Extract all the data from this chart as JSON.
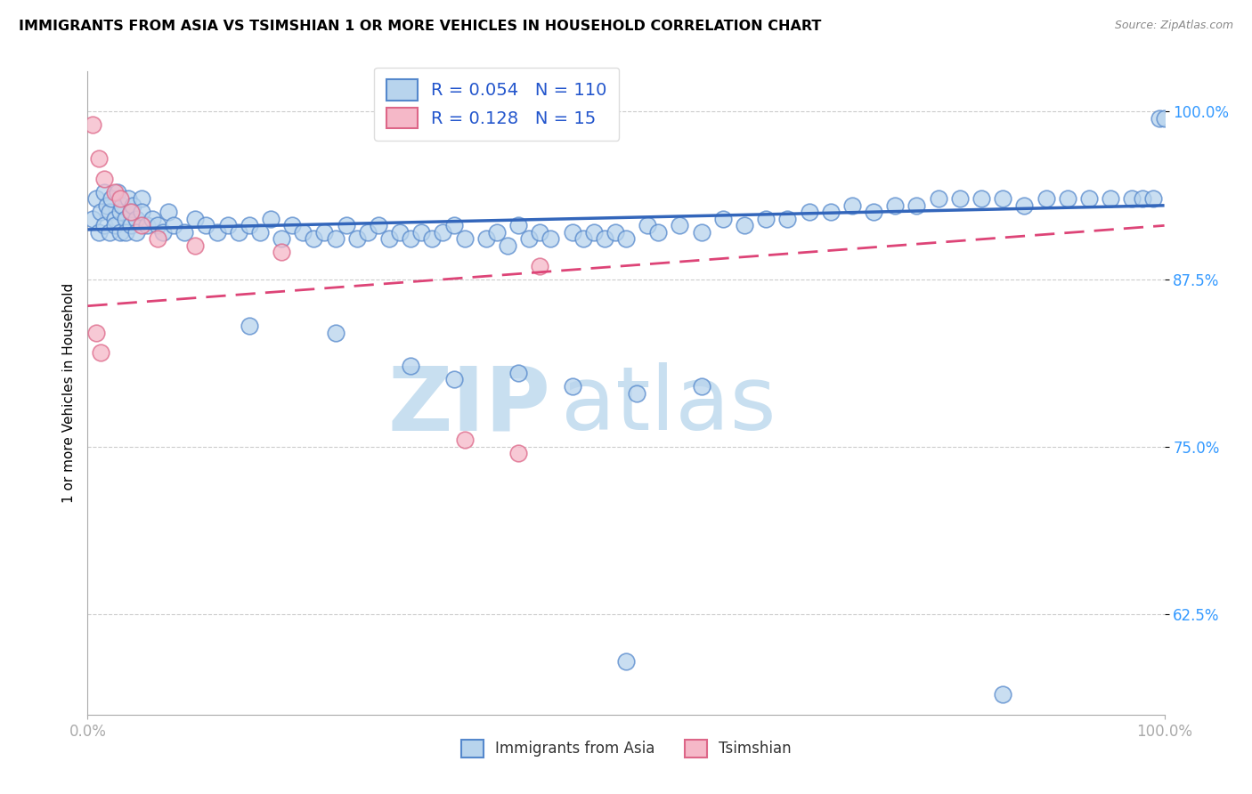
{
  "title": "IMMIGRANTS FROM ASIA VS TSIMSHIAN 1 OR MORE VEHICLES IN HOUSEHOLD CORRELATION CHART",
  "source": "Source: ZipAtlas.com",
  "ylabel": "1 or more Vehicles in Household",
  "xlim": [
    0.0,
    100.0
  ],
  "ylim": [
    55.0,
    103.0
  ],
  "yticks": [
    62.5,
    75.0,
    87.5,
    100.0
  ],
  "yticklabels": [
    "62.5%",
    "75.0%",
    "87.5%",
    "100.0%"
  ],
  "blue_R": 0.054,
  "blue_N": 110,
  "pink_R": 0.128,
  "pink_N": 15,
  "blue_color": "#b8d4ed",
  "pink_color": "#f5b8c8",
  "blue_edge": "#5588cc",
  "pink_edge": "#dd6688",
  "trend_blue": "#3366bb",
  "trend_pink": "#dd4477",
  "watermark_ZIP": "ZIP",
  "watermark_atlas": "atlas",
  "watermark_color": "#c8dff0",
  "background_color": "#ffffff",
  "grid_color": "#cccccc",
  "blue_x": [
    0.5,
    0.8,
    1.0,
    1.2,
    1.5,
    1.5,
    1.8,
    2.0,
    2.0,
    2.2,
    2.5,
    2.5,
    2.8,
    3.0,
    3.0,
    3.2,
    3.5,
    3.5,
    3.8,
    4.0,
    4.0,
    4.2,
    4.5,
    4.5,
    5.0,
    5.0,
    5.5,
    6.0,
    6.5,
    7.0,
    7.5,
    8.0,
    9.0,
    10.0,
    11.0,
    12.0,
    13.0,
    14.0,
    15.0,
    16.0,
    17.0,
    18.0,
    19.0,
    20.0,
    21.0,
    22.0,
    23.0,
    24.0,
    25.0,
    26.0,
    27.0,
    28.0,
    29.0,
    30.0,
    31.0,
    32.0,
    33.0,
    34.0,
    35.0,
    37.0,
    38.0,
    39.0,
    40.0,
    41.0,
    42.0,
    43.0,
    45.0,
    46.0,
    47.0,
    48.0,
    49.0,
    50.0,
    52.0,
    53.0,
    55.0,
    57.0,
    59.0,
    61.0,
    63.0,
    65.0,
    67.0,
    69.0,
    71.0,
    73.0,
    75.0,
    77.0,
    79.0,
    81.0,
    83.0,
    85.0,
    87.0,
    89.0,
    91.0,
    93.0,
    95.0,
    97.0,
    98.0,
    99.0,
    99.5,
    100.0,
    50.0,
    85.0,
    15.0,
    23.0,
    30.0,
    34.0,
    40.0,
    45.0,
    51.0,
    57.0
  ],
  "blue_y": [
    92.0,
    93.5,
    91.0,
    92.5,
    94.0,
    91.5,
    93.0,
    92.5,
    91.0,
    93.5,
    92.0,
    91.5,
    94.0,
    92.5,
    91.0,
    93.0,
    92.0,
    91.0,
    93.5,
    92.5,
    91.5,
    93.0,
    92.0,
    91.0,
    93.5,
    92.5,
    91.5,
    92.0,
    91.5,
    91.0,
    92.5,
    91.5,
    91.0,
    92.0,
    91.5,
    91.0,
    91.5,
    91.0,
    91.5,
    91.0,
    92.0,
    90.5,
    91.5,
    91.0,
    90.5,
    91.0,
    90.5,
    91.5,
    90.5,
    91.0,
    91.5,
    90.5,
    91.0,
    90.5,
    91.0,
    90.5,
    91.0,
    91.5,
    90.5,
    90.5,
    91.0,
    90.0,
    91.5,
    90.5,
    91.0,
    90.5,
    91.0,
    90.5,
    91.0,
    90.5,
    91.0,
    90.5,
    91.5,
    91.0,
    91.5,
    91.0,
    92.0,
    91.5,
    92.0,
    92.0,
    92.5,
    92.5,
    93.0,
    92.5,
    93.0,
    93.0,
    93.5,
    93.5,
    93.5,
    93.5,
    93.0,
    93.5,
    93.5,
    93.5,
    93.5,
    93.5,
    93.5,
    93.5,
    99.5,
    99.5,
    59.0,
    56.5,
    84.0,
    83.5,
    81.0,
    80.0,
    80.5,
    79.5,
    79.0,
    79.5
  ],
  "pink_x": [
    0.5,
    1.0,
    1.5,
    2.5,
    3.0,
    4.0,
    5.0,
    6.5,
    10.0,
    18.0,
    35.0,
    40.0,
    0.8,
    1.2,
    42.0
  ],
  "pink_y": [
    99.0,
    96.5,
    95.0,
    94.0,
    93.5,
    92.5,
    91.5,
    90.5,
    90.0,
    89.5,
    75.5,
    74.5,
    83.5,
    82.0,
    88.5
  ],
  "blue_trend_start_y": 91.2,
  "blue_trend_end_y": 93.0,
  "pink_trend_start_y": 85.5,
  "pink_trend_end_y": 91.5
}
